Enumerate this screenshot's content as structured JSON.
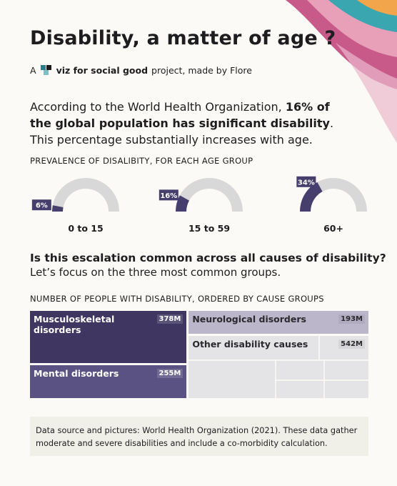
{
  "title": "Disability, a matter of age ?",
  "byline": {
    "prefix": "A",
    "brand": "viz for social good",
    "suffix": "project, made by Flore"
  },
  "intro": [
    "According to the World Health Organization, ",
    "16% of the global population has significant disability",
    ". This percentage substantially increases with age."
  ],
  "question": "Is this escalation common across all causes of disability?",
  "subquestion": "Let’s focus on the three most common groups.",
  "footnote": "Data source and pictures: World Health Organization (2021). These data gather moderate and severe disabilities and include a co-morbidity calculation.",
  "chart_data": [
    {
      "type": "gauge",
      "title": "PREVALENCE OF DISALIBITY, FOR EACH AGE GROUP",
      "categories": [
        "0 to 15",
        "15 to 59",
        "60+"
      ],
      "values": [
        6,
        16,
        34
      ],
      "value_labels": [
        "6%",
        "16%",
        "34%"
      ],
      "color": "#463e6c",
      "track_color": "#d9d8d8"
    },
    {
      "type": "treemap",
      "title": "NUMBER OF PEOPLE WITH DISABILITY, ORDERED BY CAUSE GROUPS",
      "categories": [
        "Musculoskeletal disorders",
        "Mental disorders",
        "Neurological disorders",
        "Other disability causes"
      ],
      "values": [
        378000000,
        255000000,
        193000000,
        542000000
      ],
      "value_labels": [
        "378M",
        "255M",
        "193M",
        "542M"
      ],
      "colors": [
        "#3f3762",
        "#5a5282",
        "#bbb6ca",
        "#e4e3e6"
      ]
    }
  ]
}
